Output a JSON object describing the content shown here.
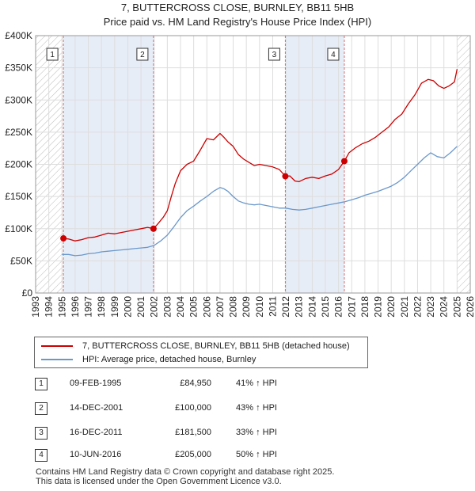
{
  "header": {
    "title_line1": "7, BUTTERCROSS CLOSE, BURNLEY, BB11 5HB",
    "title_line2": "Price paid vs. HM Land Registry's House Price Index (HPI)"
  },
  "chart_data": {
    "type": "line",
    "xlim": [
      1993,
      2026
    ],
    "ylim": [
      0,
      400000
    ],
    "x_ticks": [
      "1993",
      "1994",
      "1995",
      "1996",
      "1997",
      "1998",
      "1999",
      "2000",
      "2001",
      "2002",
      "2003",
      "2004",
      "2005",
      "2006",
      "2007",
      "2008",
      "2009",
      "2010",
      "2011",
      "2012",
      "2013",
      "2014",
      "2015",
      "2016",
      "2017",
      "2018",
      "2019",
      "2020",
      "2021",
      "2022",
      "2023",
      "2024",
      "2025",
      "2026"
    ],
    "y_ticks": [
      {
        "value": 0,
        "label": "£0"
      },
      {
        "value": 50000,
        "label": "£50K"
      },
      {
        "value": 100000,
        "label": "£100K"
      },
      {
        "value": 150000,
        "label": "£150K"
      },
      {
        "value": 200000,
        "label": "£200K"
      },
      {
        "value": 250000,
        "label": "£250K"
      },
      {
        "value": 300000,
        "label": "£300K"
      },
      {
        "value": 350000,
        "label": "£350K"
      },
      {
        "value": 400000,
        "label": "£400K"
      }
    ],
    "grid": true,
    "hatched_ranges": [
      [
        1993,
        1995.1
      ],
      [
        2025.0,
        2026
      ]
    ],
    "shaded_ranges": [
      [
        1995.11,
        2001.95
      ],
      [
        2011.96,
        2016.44
      ]
    ],
    "colors": {
      "property": "#cc0000",
      "hpi": "#6a98cc",
      "shade": "#dde6f4",
      "marker_line": "#d07070"
    },
    "series": [
      {
        "name": "7, BUTTERCROSS CLOSE, BURNLEY, BB11 5HB (detached house)",
        "color": "#cc0000",
        "x": [
          1995.11,
          1995.5,
          1996,
          1996.5,
          1997,
          1997.5,
          1998,
          1998.5,
          1999,
          1999.5,
          2000,
          2000.5,
          2001,
          2001.5,
          2001.95,
          2002.3,
          2002.7,
          2003,
          2003.3,
          2003.6,
          2004,
          2004.5,
          2005,
          2005.5,
          2006,
          2006.5,
          2007,
          2007.3,
          2007.6,
          2008,
          2008.4,
          2008.8,
          2009.2,
          2009.6,
          2010,
          2010.5,
          2011,
          2011.5,
          2011.96,
          2012.3,
          2012.7,
          2013,
          2013.5,
          2014,
          2014.5,
          2015,
          2015.5,
          2016,
          2016.44,
          2016.8,
          2017.3,
          2017.8,
          2018.3,
          2018.8,
          2019.3,
          2019.8,
          2020.3,
          2020.8,
          2021.3,
          2021.8,
          2022.3,
          2022.8,
          2023.2,
          2023.6,
          2024,
          2024.4,
          2024.8,
          2025.0
        ],
        "values": [
          84950,
          84000,
          81000,
          83000,
          86000,
          87000,
          90000,
          93000,
          92000,
          94000,
          96000,
          98000,
          100000,
          102000,
          100000,
          108000,
          118000,
          128000,
          150000,
          170000,
          190000,
          200000,
          205000,
          222000,
          240000,
          238000,
          248000,
          242000,
          235000,
          228000,
          215000,
          208000,
          203000,
          198000,
          200000,
          198000,
          196000,
          192000,
          181500,
          182000,
          174000,
          173000,
          178000,
          180000,
          178000,
          182000,
          185000,
          192000,
          205000,
          218000,
          226000,
          232000,
          236000,
          242000,
          250000,
          258000,
          270000,
          278000,
          294000,
          308000,
          326000,
          332000,
          330000,
          322000,
          318000,
          322000,
          328000,
          348000
        ]
      },
      {
        "name": "HPI: Average price, detached house, Burnley",
        "color": "#6a98cc",
        "x": [
          1995,
          1995.5,
          1996,
          1996.5,
          1997,
          1997.5,
          1998,
          1998.5,
          1999,
          1999.5,
          2000,
          2000.5,
          2001,
          2001.5,
          2002,
          2002.5,
          2003,
          2003.5,
          2004,
          2004.5,
          2005,
          2005.5,
          2006,
          2006.5,
          2007,
          2007.3,
          2007.6,
          2008,
          2008.4,
          2008.8,
          2009.2,
          2009.6,
          2010,
          2010.5,
          2011,
          2011.5,
          2012,
          2012.5,
          2013,
          2013.5,
          2014,
          2014.5,
          2015,
          2015.5,
          2016,
          2016.5,
          2017,
          2017.5,
          2018,
          2018.5,
          2019,
          2019.5,
          2020,
          2020.5,
          2021,
          2021.5,
          2022,
          2022.5,
          2023,
          2023.5,
          2024,
          2024.5,
          2025.0
        ],
        "values": [
          60000,
          60000,
          58000,
          59000,
          61000,
          62000,
          64000,
          65000,
          66000,
          67000,
          68000,
          69000,
          70000,
          71000,
          74000,
          81000,
          90000,
          103000,
          117000,
          128000,
          135000,
          143000,
          150000,
          158000,
          164000,
          162000,
          158000,
          150000,
          143000,
          140000,
          138000,
          137000,
          138000,
          136000,
          134000,
          132000,
          132000,
          130000,
          129000,
          130000,
          132000,
          134000,
          136000,
          138000,
          140000,
          142000,
          145000,
          148000,
          152000,
          155000,
          158000,
          162000,
          166000,
          172000,
          180000,
          190000,
          200000,
          210000,
          218000,
          212000,
          210000,
          218000,
          228000
        ]
      }
    ],
    "sale_markers": [
      {
        "label": "1",
        "x": 1995.11,
        "y": 84950
      },
      {
        "label": "2",
        "x": 2001.95,
        "y": 100000
      },
      {
        "label": "3",
        "x": 2011.96,
        "y": 181500
      },
      {
        "label": "4",
        "x": 2016.44,
        "y": 205000
      }
    ]
  },
  "legend": {
    "property_label": "7, BUTTERCROSS CLOSE, BURNLEY, BB11 5HB (detached house)",
    "hpi_label": "HPI: Average price, detached house, Burnley"
  },
  "transactions": [
    {
      "num": "1",
      "date": "09-FEB-1995",
      "price": "£84,950",
      "hpi": "41% ↑ HPI"
    },
    {
      "num": "2",
      "date": "14-DEC-2001",
      "price": "£100,000",
      "hpi": "43% ↑ HPI"
    },
    {
      "num": "3",
      "date": "16-DEC-2011",
      "price": "£181,500",
      "hpi": "33% ↑ HPI"
    },
    {
      "num": "4",
      "date": "10-JUN-2016",
      "price": "£205,000",
      "hpi": "50% ↑ HPI"
    }
  ],
  "footer": {
    "line1": "Contains HM Land Registry data © Crown copyright and database right 2025.",
    "line2": "This data is licensed under the Open Government Licence v3.0."
  }
}
